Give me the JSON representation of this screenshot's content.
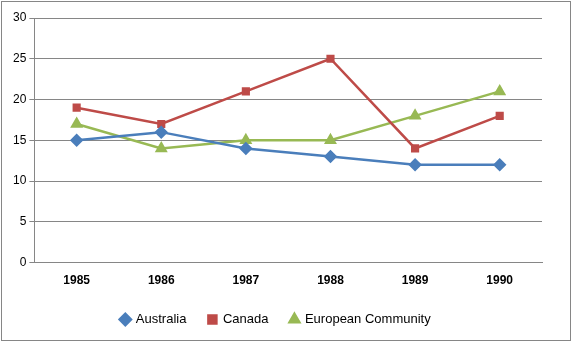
{
  "chart_data": {
    "type": "line",
    "categories": [
      "1985",
      "1986",
      "1987",
      "1988",
      "1989",
      "1990"
    ],
    "series": [
      {
        "name": "Australia",
        "color": "#4a7ebb",
        "marker": "diamond",
        "values": [
          15,
          16,
          14,
          13,
          12,
          12
        ]
      },
      {
        "name": "Canada",
        "color": "#be4b48",
        "marker": "square",
        "values": [
          19,
          17,
          21,
          25,
          14,
          18
        ]
      },
      {
        "name": "European Community",
        "color": "#98b954",
        "marker": "triangle",
        "values": [
          17,
          14,
          15,
          15,
          18,
          21
        ]
      }
    ],
    "ylim": [
      0,
      30
    ],
    "yticks": [
      0,
      5,
      10,
      15,
      20,
      25,
      30
    ],
    "grid": true,
    "legend": "bottom"
  }
}
